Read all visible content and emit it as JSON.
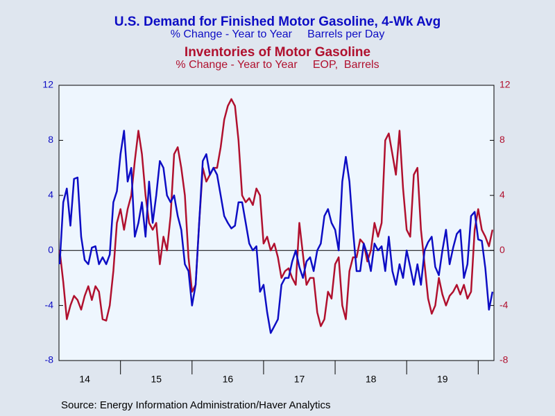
{
  "chart_data": {
    "type": "line",
    "title": "U.S. Demand for Finished Motor Gasoline, 4-Wk Avg",
    "subtitle": "% Change - Year to Year     Barrels per Day",
    "title2": "Inventories of Motor Gasoline",
    "subtitle2": "% Change - Year to Year     EOP,  Barrels",
    "source": "Source:  Energy Information Administration/Haver Analytics",
    "xlim": [
      2014.14,
      2020.22
    ],
    "xticks": [
      {
        "value": 2014.5,
        "label": "14"
      },
      {
        "value": 2015.5,
        "label": "15"
      },
      {
        "value": 2016.5,
        "label": "16"
      },
      {
        "value": 2017.5,
        "label": "17"
      },
      {
        "value": 2018.5,
        "label": "18"
      },
      {
        "value": 2019.5,
        "label": "19"
      }
    ],
    "xtick_marks": [
      2015,
      2016,
      2017,
      2018,
      2019,
      2020
    ],
    "ylim": [
      -8,
      12
    ],
    "yticks": [
      -8,
      -4,
      0,
      4,
      8,
      12
    ],
    "y2lim": [
      -8,
      12
    ],
    "y2ticks": [
      -8,
      -4,
      0,
      4,
      8,
      12
    ],
    "zero_line": true,
    "x": [
      2014.15,
      2014.2,
      2014.25,
      2014.3,
      2014.35,
      2014.4,
      2014.45,
      2014.5,
      2014.55,
      2014.6,
      2014.65,
      2014.7,
      2014.75,
      2014.8,
      2014.85,
      2014.9,
      2014.95,
      2015.0,
      2015.05,
      2015.1,
      2015.15,
      2015.2,
      2015.25,
      2015.3,
      2015.35,
      2015.4,
      2015.45,
      2015.5,
      2015.55,
      2015.6,
      2015.65,
      2015.7,
      2015.75,
      2015.8,
      2015.85,
      2015.9,
      2015.95,
      2016.0,
      2016.05,
      2016.1,
      2016.15,
      2016.2,
      2016.25,
      2016.3,
      2016.35,
      2016.4,
      2016.45,
      2016.5,
      2016.55,
      2016.6,
      2016.65,
      2016.7,
      2016.75,
      2016.8,
      2016.85,
      2016.9,
      2016.95,
      2017.0,
      2017.05,
      2017.1,
      2017.15,
      2017.2,
      2017.25,
      2017.3,
      2017.35,
      2017.4,
      2017.45,
      2017.5,
      2017.55,
      2017.6,
      2017.65,
      2017.7,
      2017.75,
      2017.8,
      2017.85,
      2017.9,
      2017.95,
      2018.0,
      2018.05,
      2018.1,
      2018.15,
      2018.2,
      2018.25,
      2018.3,
      2018.35,
      2018.4,
      2018.45,
      2018.5,
      2018.55,
      2018.6,
      2018.65,
      2018.7,
      2018.75,
      2018.8,
      2018.85,
      2018.9,
      2018.95,
      2019.0,
      2019.05,
      2019.1,
      2019.15,
      2019.2,
      2019.25,
      2019.3,
      2019.35,
      2019.4,
      2019.45,
      2019.5,
      2019.55,
      2019.6,
      2019.65,
      2019.7,
      2019.75,
      2019.8,
      2019.85,
      2019.9,
      2019.95,
      2020.0,
      2020.05,
      2020.1,
      2020.15,
      2020.2
    ],
    "series": [
      {
        "name": "U.S. Demand for Finished Motor Gasoline, 4-Wk Avg",
        "color": "#0d0dc4",
        "axis": "y",
        "values": [
          -1,
          3.5,
          4.5,
          1.8,
          5.2,
          5.3,
          1,
          -0.7,
          -1,
          0.2,
          0.3,
          -1,
          -0.5,
          -1,
          -0.3,
          3.5,
          4.3,
          7,
          8.7,
          5,
          6,
          1,
          2,
          3.5,
          1,
          5,
          2,
          4,
          6.5,
          6,
          4,
          3.5,
          4,
          2.5,
          1.5,
          -1,
          -1.5,
          -4,
          -2.5,
          2,
          6.5,
          7,
          5.5,
          6,
          5.5,
          4,
          2.5,
          2,
          1.6,
          1.8,
          3.5,
          3.5,
          2,
          0.5,
          0,
          0.3,
          -3,
          -2.5,
          -4.5,
          -6,
          -5.5,
          -5,
          -2.5,
          -2,
          -2,
          -0.8,
          0,
          -1.2,
          -2,
          -0.8,
          -0.5,
          -1.5,
          0,
          0.5,
          2.5,
          3,
          2,
          1.5,
          0,
          5,
          6.8,
          5,
          1.5,
          -1.5,
          -1.5,
          0.5,
          -0.3,
          -1.5,
          0.5,
          0,
          0.3,
          -1.5,
          1,
          -1.5,
          -2.5,
          -1,
          -2,
          0,
          -1.2,
          -2.5,
          -1,
          -2.5,
          0,
          0.6,
          1,
          -1.2,
          -1.8,
          0,
          1.5,
          -1,
          0.2,
          1.2,
          1.5,
          -2,
          -1,
          2.5,
          2.8,
          0.8,
          0.7,
          -1.3,
          -4.3,
          -3
        ]
      },
      {
        "name": "Inventories of Motor Gasoline",
        "color": "#b0102e",
        "axis": "y2",
        "values": [
          0,
          -2.3,
          -5,
          -4,
          -3.3,
          -3.6,
          -4.3,
          -3.3,
          -2.6,
          -3.6,
          -2.6,
          -3,
          -5,
          -5.1,
          -4,
          -1.5,
          2,
          3,
          1.5,
          3,
          4,
          6.5,
          8.7,
          7,
          4,
          2,
          1.5,
          2,
          -1,
          1,
          0,
          2.5,
          7,
          7.5,
          6,
          4,
          -0.5,
          -3,
          -2.5,
          2,
          6,
          5,
          5.5,
          6,
          6,
          7.5,
          9.5,
          10.5,
          11,
          10.5,
          8,
          4,
          3.5,
          3.8,
          3.3,
          4.5,
          4,
          0.5,
          1,
          0,
          0.5,
          -0.5,
          -2,
          -1.5,
          -1.3,
          -2,
          -2.5,
          2,
          -0.3,
          -2.5,
          -2,
          -2,
          -4.5,
          -5.5,
          -5,
          -3,
          -3.5,
          -1,
          -0.5,
          -4,
          -5,
          -1.5,
          -0.5,
          -0.5,
          0.8,
          0.5,
          -0.8,
          0,
          2,
          1,
          2,
          8,
          8.5,
          7,
          5.5,
          8.7,
          4.5,
          1.5,
          1,
          5.5,
          6,
          1.5,
          -1,
          -3.5,
          -4.6,
          -4,
          -2,
          -3.2,
          -4,
          -3.3,
          -3,
          -2.5,
          -3.2,
          -2.5,
          -3.5,
          -3,
          1.5,
          3,
          1.5,
          1,
          0.3,
          1.5
        ]
      }
    ]
  }
}
